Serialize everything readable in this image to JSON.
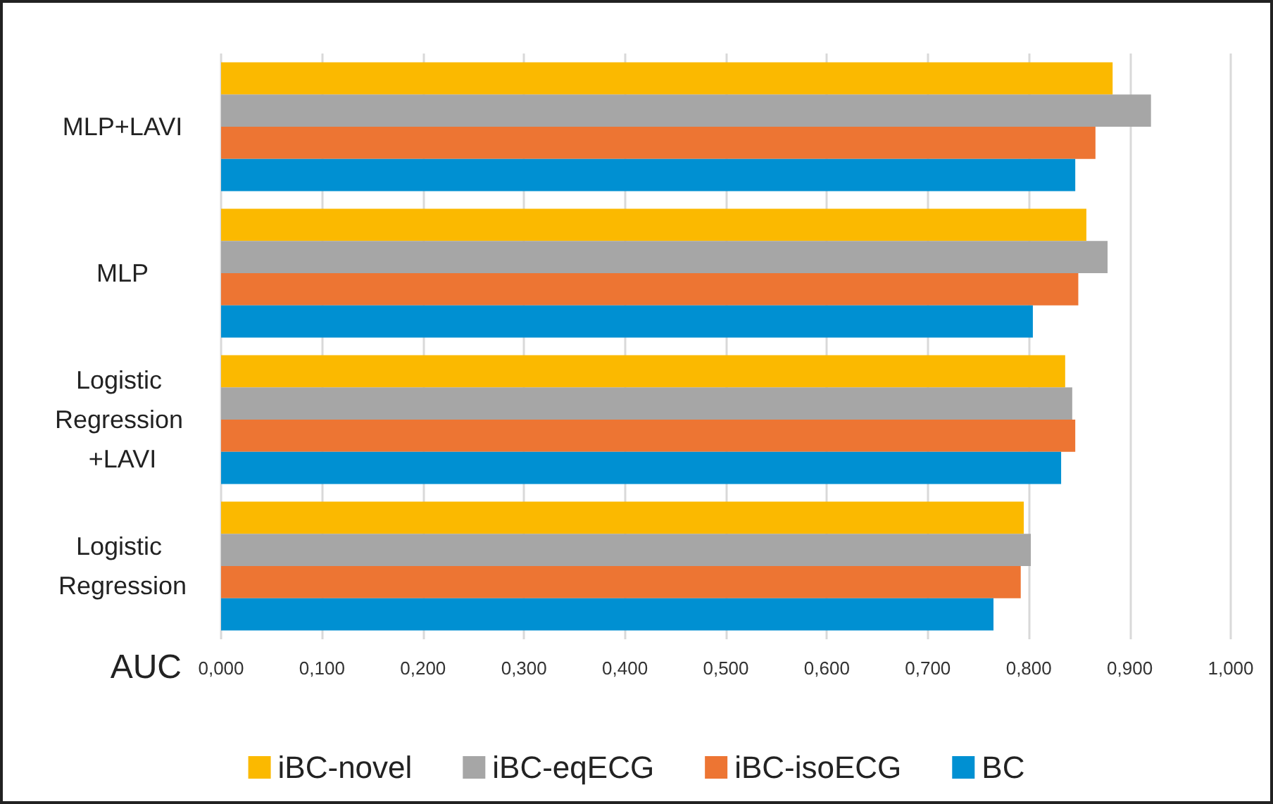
{
  "chart_data": {
    "type": "bar",
    "orientation": "horizontal",
    "xlabel": "AUC",
    "categories": [
      "MLP+LAVI",
      "MLP",
      "Logistic Regression +LAVI",
      "Logistic Regression"
    ],
    "series": [
      {
        "name": "iBC-novel",
        "color": "#fbb900",
        "values": [
          0.883,
          0.857,
          0.836,
          0.795
        ]
      },
      {
        "name": "iBC-eqECG",
        "color": "#a6a6a6",
        "values": [
          0.921,
          0.878,
          0.843,
          0.802
        ]
      },
      {
        "name": "iBC-isoECG",
        "color": "#ed7533",
        "values": [
          0.866,
          0.849,
          0.846,
          0.792
        ]
      },
      {
        "name": "BC",
        "color": "#0090d2",
        "values": [
          0.846,
          0.804,
          0.832,
          0.765
        ]
      }
    ],
    "xlim": [
      0,
      1
    ],
    "xticks": [
      {
        "value": 0,
        "label": "0,000"
      },
      {
        "value": 0.1,
        "label": "0,100"
      },
      {
        "value": 0.2,
        "label": "0,200"
      },
      {
        "value": 0.3,
        "label": "0,300"
      },
      {
        "value": 0.4,
        "label": "0,400"
      },
      {
        "value": 0.5,
        "label": "0,500"
      },
      {
        "value": 0.6,
        "label": "0,600"
      },
      {
        "value": 0.7,
        "label": "0,700"
      },
      {
        "value": 0.8,
        "label": "0,800"
      },
      {
        "value": 0.9,
        "label": "0,900"
      },
      {
        "value": 1,
        "label": "1,000"
      }
    ],
    "grid": "x",
    "legend": "bottom"
  }
}
